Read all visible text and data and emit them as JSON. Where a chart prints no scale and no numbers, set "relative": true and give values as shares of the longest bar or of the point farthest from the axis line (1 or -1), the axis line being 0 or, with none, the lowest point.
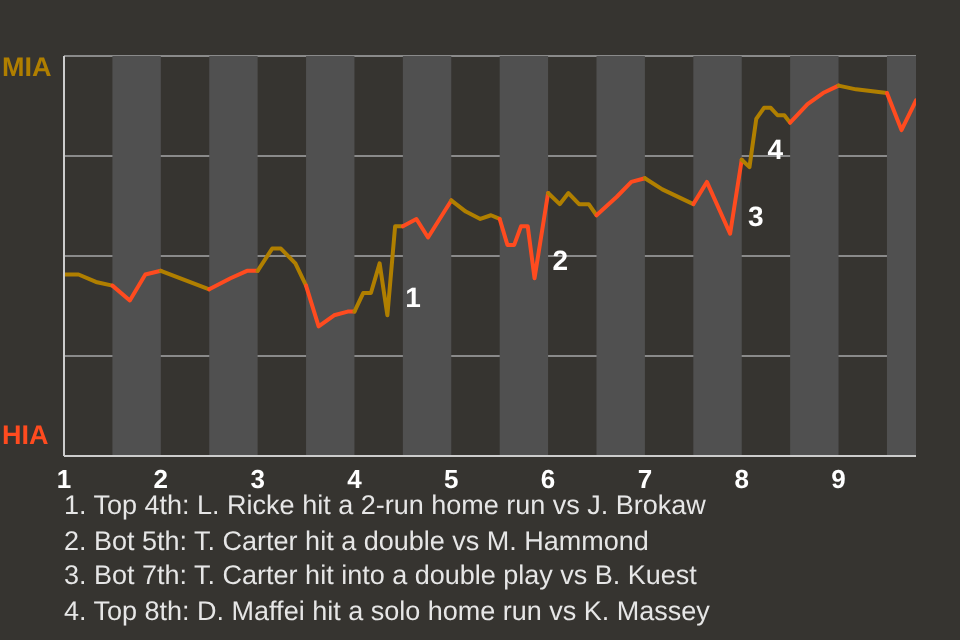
{
  "chart_data": {
    "type": "line",
    "relative": true,
    "series": [
      {
        "color": "#b07f00",
        "x": [
          1.0,
          1.15,
          1.33,
          1.5
        ],
        "values": [
          0.49,
          0.49,
          0.47,
          0.46
        ]
      },
      {
        "color": "#ff4b1f",
        "x": [
          1.5,
          1.68,
          1.84,
          2.0
        ],
        "values": [
          0.46,
          0.42,
          0.49,
          0.5
        ]
      },
      {
        "color": "#b07f00",
        "x": [
          2.0,
          2.5
        ],
        "values": [
          0.5,
          0.45
        ]
      },
      {
        "color": "#ff4b1f",
        "x": [
          2.5,
          2.72,
          2.89,
          3.0
        ],
        "values": [
          0.45,
          0.48,
          0.5,
          0.5
        ]
      },
      {
        "color": "#b07f00",
        "x": [
          3.0,
          3.15,
          3.24,
          3.39,
          3.5
        ],
        "values": [
          0.5,
          0.56,
          0.56,
          0.52,
          0.46
        ]
      },
      {
        "color": "#ff4b1f",
        "x": [
          3.5,
          3.63,
          3.79,
          3.93,
          4.0
        ],
        "values": [
          0.46,
          0.35,
          0.38,
          0.39,
          0.39
        ]
      },
      {
        "color": "#b07f00",
        "x": [
          4.0,
          4.09,
          4.17,
          4.26,
          4.34,
          4.42,
          4.5
        ],
        "values": [
          0.39,
          0.44,
          0.44,
          0.52,
          0.38,
          0.62,
          0.62
        ]
      },
      {
        "color": "#ff4b1f",
        "x": [
          4.5,
          4.64,
          4.76,
          5.0
        ],
        "values": [
          0.62,
          0.64,
          0.59,
          0.69
        ]
      },
      {
        "color": "#b07f00",
        "x": [
          5.0,
          5.15,
          5.3,
          5.41,
          5.5
        ],
        "values": [
          0.69,
          0.66,
          0.64,
          0.65,
          0.64
        ]
      },
      {
        "color": "#ff4b1f",
        "x": [
          5.5,
          5.58,
          5.65,
          5.72,
          5.79,
          5.86,
          6.0
        ],
        "values": [
          0.64,
          0.57,
          0.57,
          0.62,
          0.62,
          0.48,
          0.71
        ]
      },
      {
        "color": "#b07f00",
        "x": [
          6.0,
          6.12,
          6.21,
          6.32,
          6.42,
          6.5
        ],
        "values": [
          0.71,
          0.68,
          0.71,
          0.68,
          0.68,
          0.65
        ]
      },
      {
        "color": "#ff4b1f",
        "x": [
          6.5,
          6.71,
          6.86,
          7.0
        ],
        "values": [
          0.65,
          0.7,
          0.74,
          0.75
        ]
      },
      {
        "color": "#b07f00",
        "x": [
          7.0,
          7.18,
          7.5
        ],
        "values": [
          0.75,
          0.72,
          0.68
        ]
      },
      {
        "color": "#ff4b1f",
        "x": [
          7.5,
          7.64,
          7.88,
          8.0
        ],
        "values": [
          0.68,
          0.74,
          0.6,
          0.8
        ]
      },
      {
        "color": "#b07f00",
        "x": [
          8.0,
          8.08,
          8.15,
          8.23,
          8.3,
          8.37,
          8.44,
          8.5
        ],
        "values": [
          0.8,
          0.78,
          0.91,
          0.94,
          0.94,
          0.92,
          0.92,
          0.9
        ]
      },
      {
        "color": "#ff4b1f",
        "x": [
          8.5,
          8.68,
          8.84,
          9.0
        ],
        "values": [
          0.9,
          0.95,
          0.98,
          1
        ]
      },
      {
        "color": "#b07f00",
        "x": [
          9.0,
          9.18,
          9.5
        ],
        "values": [
          1,
          0.99,
          0.98
        ]
      },
      {
        "color": "#ff4b1f",
        "x": [
          9.5,
          9.65,
          9.8
        ],
        "values": [
          0.98,
          0.88,
          0.96
        ]
      }
    ],
    "xlim": [
      1,
      9.8
    ],
    "xticks": [
      1,
      2,
      3,
      4,
      5,
      6,
      7,
      8,
      9
    ],
    "grid": "y",
    "marker": "none",
    "line_style": "solid",
    "bands": [
      {
        "axis": "x",
        "from": 1.5,
        "to": 2,
        "color": "#505050"
      },
      {
        "axis": "x",
        "from": 2.5,
        "to": 3,
        "color": "#505050"
      },
      {
        "axis": "x",
        "from": 3.5,
        "to": 4,
        "color": "#505050"
      },
      {
        "axis": "x",
        "from": 4.5,
        "to": 5,
        "color": "#505050"
      },
      {
        "axis": "x",
        "from": 5.5,
        "to": 6,
        "color": "#505050"
      },
      {
        "axis": "x",
        "from": 6.5,
        "to": 7,
        "color": "#505050"
      },
      {
        "axis": "x",
        "from": 7.5,
        "to": 8,
        "color": "#505050"
      },
      {
        "axis": "x",
        "from": 8.5,
        "to": 9,
        "color": "#505050"
      },
      {
        "axis": "x",
        "from": 9.5,
        "to": 9.8,
        "color": "#505050"
      }
    ],
    "annotations": [
      "MIA",
      "HIA",
      {
        "text": "1",
        "x": 4.34,
        "y": 0.38
      },
      {
        "text": "2",
        "x": 5.86,
        "y": 0.48
      },
      {
        "text": "3",
        "x": 7.88,
        "y": 0.6
      },
      {
        "text": "4",
        "x": 8.08,
        "y": 0.78
      },
      "1. Top 4th: L. Ricke hit a 2-run home run vs J. Brokaw",
      "2. Bot 5th: T. Carter hit a double vs M. Hammond",
      "3. Bot 7th: T. Carter hit into a double play vs B. Kuest",
      "4. Top 8th: D. Maffei hit a solo home run vs K. Massey"
    ]
  }
}
